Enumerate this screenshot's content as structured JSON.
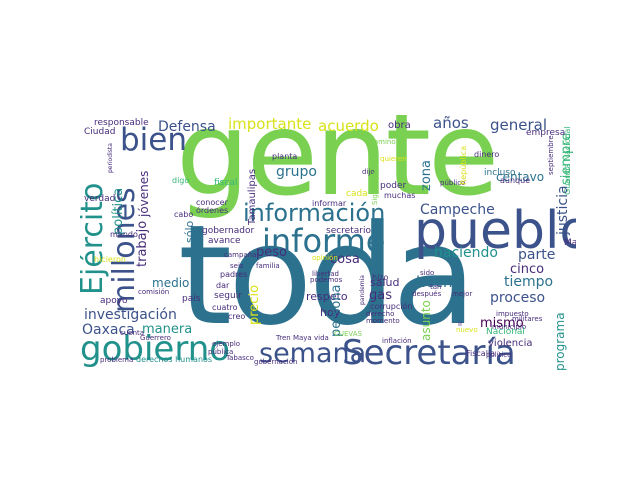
{
  "palette": {
    "background": "#ffffff",
    "lime": "#7ad151",
    "green": "#35b779",
    "teal": "#21918c",
    "blue": "#2c728e",
    "indigo": "#3b528b",
    "purple": "#472d7b",
    "dark": "#440154",
    "yellow": "#d8e219",
    "sea": "#1fa187"
  },
  "words": {
    "toda": "toda",
    "gente": "gente",
    "pueblo": "pueblo",
    "informe": "informe",
    "secretaria": "Secretaría",
    "gobierno": "gobierno",
    "semana": "semana",
    "ejercito": "Ejército",
    "millones": "millones",
    "informacion": "información",
    "bien": "bien",
    "defensa": "Defensa",
    "importante": "importante",
    "acuerdo": "acuerdo",
    "anos": "años",
    "general": "general",
    "campeche": "Campeche",
    "haciendo": "haciendo",
    "zona": "zona",
    "centavo": "centavo",
    "justicia": "justicia",
    "siempre": "siempre",
    "politica": "política",
    "trabajo": "trabajo",
    "jovenes": "jóvenes",
    "grupo": "grupo",
    "cosa": "cosa",
    "peso": "peso",
    "hecho": "hecho",
    "parte": "parte",
    "tiempo": "tiempo",
    "cinco": "cinco",
    "proceso": "proceso",
    "mismo": "mismo",
    "programa": "programa",
    "investigacion": "investigación",
    "oaxaca": "Oaxaca",
    "manera": "manera",
    "medio": "medio",
    "solo": "sólo",
    "precio": "precio",
    "persona": "persona",
    "gas": "gas",
    "salud": "salud",
    "asunto": "asunto",
    "respeto": "respeto",
    "hoy": "hoy",
    "responsable": "responsable",
    "ciudad": "Ciudad",
    "tamaulipas": "Tamaulipas",
    "verdad": "verdad",
    "fiscal": "fiscal",
    "digo": "digo",
    "planta": "planta",
    "obra": "obra",
    "camino": "camino",
    "dinero": "dinero",
    "empresa": "empresa",
    "guardia_nacional": "Guardia Nacional",
    "republica": "República",
    "incluso": "incluso",
    "aunque": "aunque",
    "septiembre": "septiembre",
    "poder": "poder",
    "muchas": "muchas",
    "informar": "informar",
    "dijo": "dijo",
    "quieren": "quieren",
    "publico": "público",
    "siguiente": "Siguiente",
    "cabo": "cabo",
    "conocer": "conocer",
    "ordenes": "órdenes",
    "gobernador": "gobernador",
    "secretario": "secretario",
    "avance": "avance",
    "mundo": "mundo",
    "campana": "campaña",
    "hicieron": "hicieron",
    "corrupcion": "corrupción",
    "apoyo": "apoyo",
    "pais": "país",
    "dar": "dar",
    "seguir": "seguir",
    "padres": "padres",
    "cuatro": "cuatro",
    "creo": "creo",
    "pandemia": "pandemia",
    "hizo": "hizo",
    "sido": "sido",
    "tan": "tan",
    "despues": "después",
    "mejor": "mejor",
    "impuesto": "impuesto",
    "militares": "militares",
    "municipio": "municipio",
    "marina": "Marina",
    "nacional": "Nacional",
    "violencia": "violencia",
    "fiscalia": "Fiscalía",
    "politico": "político",
    "nuevo": "nuevo",
    "ir": "ir",
    "derecho": "derecho",
    "momento": "momento",
    "inflacion": "inflación",
    "cuevas": "CUEVAS",
    "podemos": "podemos",
    "opinion": "opinión",
    "libertad": "libertad",
    "seis": "seis",
    "familia": "familia",
    "tren_maya": "Tren Maya",
    "vida": "vida",
    "ejemplo": "ejemplo",
    "publica": "pública",
    "derechos_humanos": "derechos humanos",
    "gobernacion": "gobernación",
    "problema": "problema",
    "guerrero": "Guerrero",
    "cuenta": "cuenta",
    "comision": "comisión",
    "tabasco": "Tabasco",
    "periodista": "periodista",
    "cada": "cada"
  }
}
